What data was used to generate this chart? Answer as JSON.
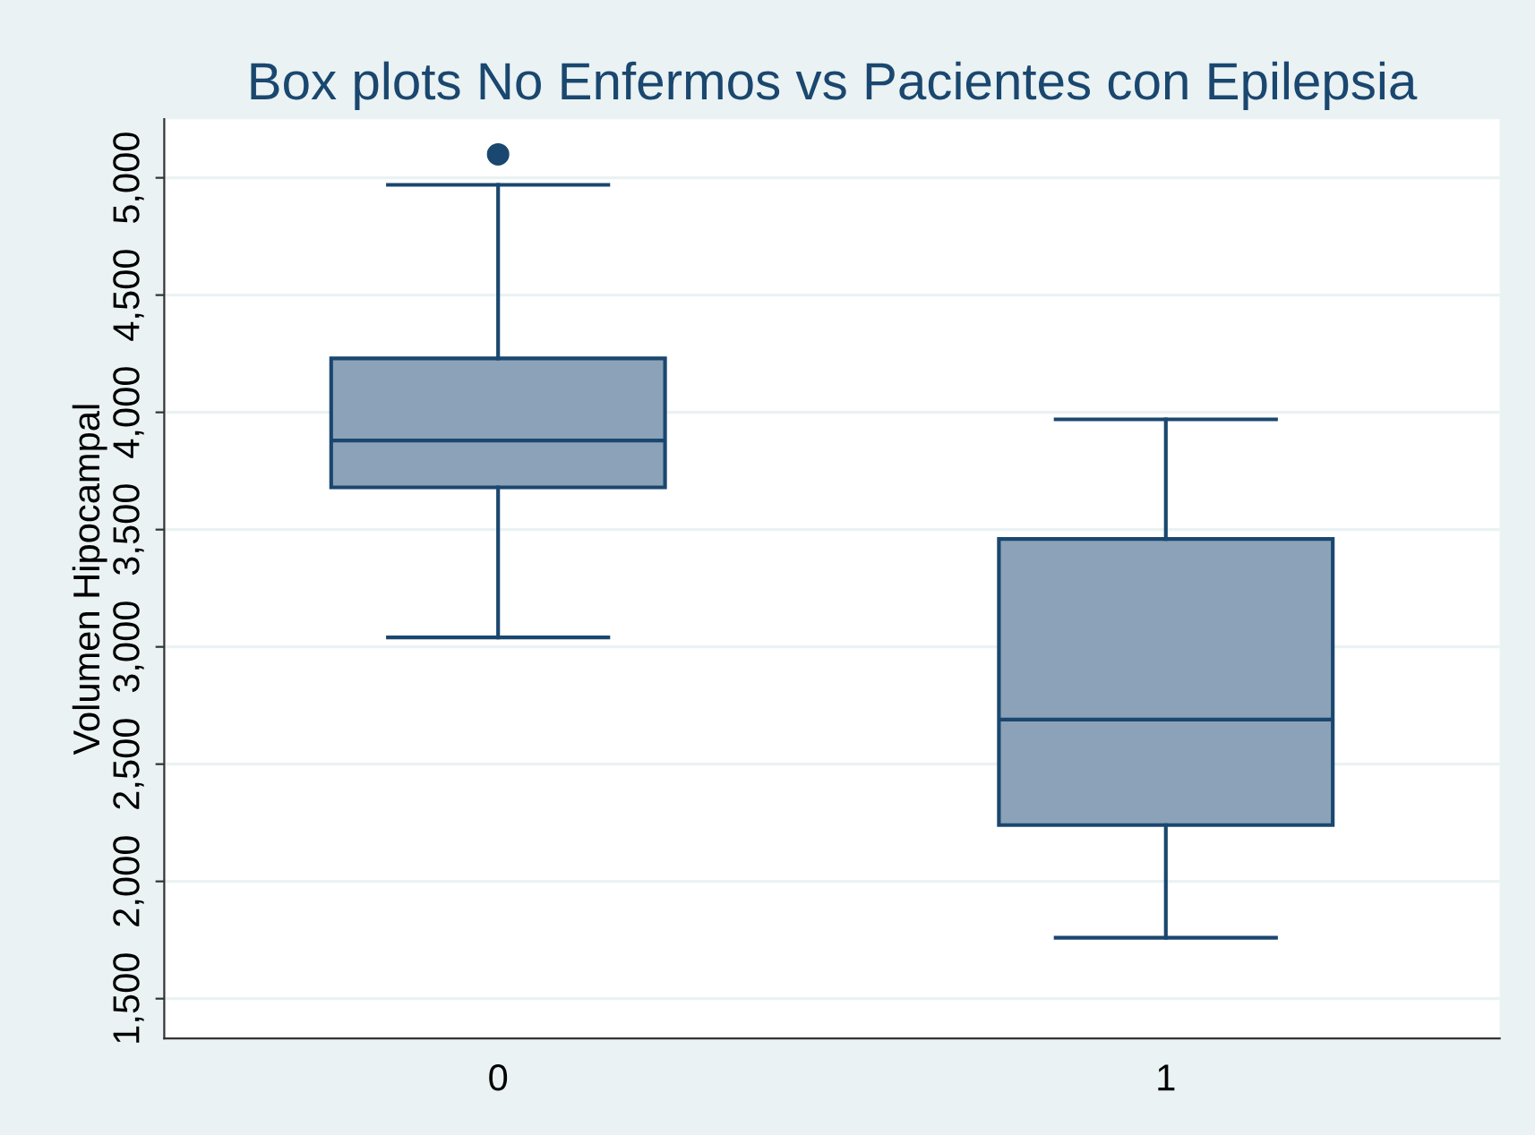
{
  "chart_data": {
    "type": "box",
    "title": "Box plots No Enfermos vs Pacientes con Epilepsia",
    "ylabel": "Volumen Hipocampal",
    "categories": [
      "0",
      "1"
    ],
    "series": [
      {
        "color": "#8ca2b8",
        "boxes": [
          {
            "low": 3040,
            "q1": 3680,
            "median": 3880,
            "q3": 4230,
            "high": 4970,
            "outliers": [
              5100
            ]
          },
          {
            "low": 1760,
            "q1": 2240,
            "median": 2690,
            "q3": 3460,
            "high": 3970
          }
        ]
      }
    ],
    "ylim": [
      1330,
      5250
    ],
    "yticks": [
      {
        "value": 1500,
        "label": "1,500"
      },
      {
        "value": 2000,
        "label": "2,000"
      },
      {
        "value": 2500,
        "label": "2,500"
      },
      {
        "value": 3000,
        "label": "3,000"
      },
      {
        "value": 3500,
        "label": "3,500"
      },
      {
        "value": 4000,
        "label": "4,000"
      },
      {
        "value": 4500,
        "label": "4,500"
      },
      {
        "value": 5000,
        "label": "5,000"
      }
    ],
    "grid": "y"
  }
}
